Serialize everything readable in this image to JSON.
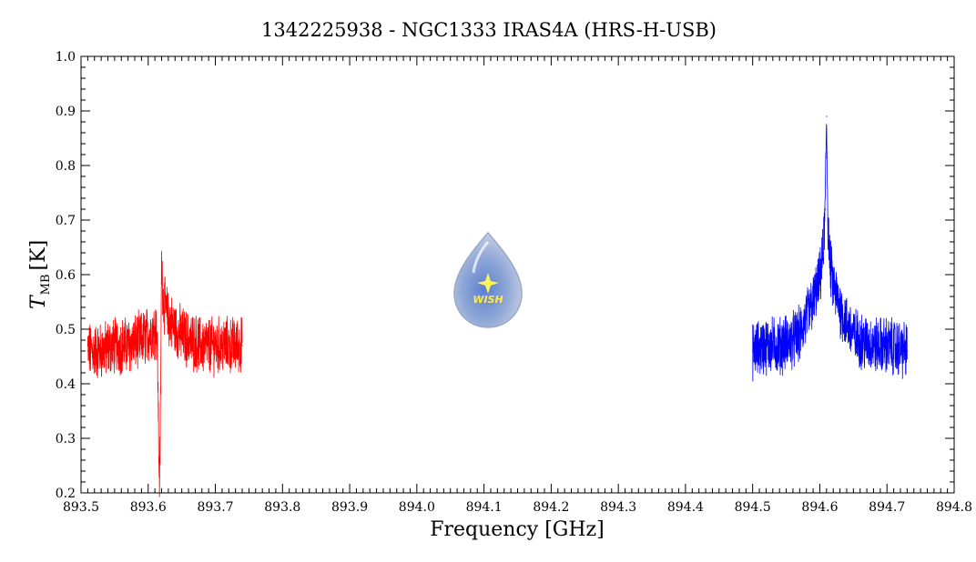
{
  "chart_data": {
    "type": "line",
    "title": "1342225938 - NGC1333 IRAS4A (HRS-H-USB)",
    "xlabel": "Frequency [GHz]",
    "ylabel_main": "T",
    "ylabel_sub": "MB",
    "ylabel_unit": "[K]",
    "xlim": [
      893.5,
      894.8
    ],
    "ylim": [
      0.2,
      1.0
    ],
    "xticks": [
      893.5,
      893.6,
      893.7,
      893.8,
      893.9,
      894.0,
      894.1,
      894.2,
      894.3,
      894.4,
      894.5,
      894.6,
      894.7,
      894.8
    ],
    "xtick_labels": [
      "893.5",
      "893.6",
      "893.7",
      "893.8",
      "893.9",
      "894.0",
      "894.1",
      "894.2",
      "894.3",
      "894.4",
      "894.5",
      "894.6",
      "894.7",
      "894.8"
    ],
    "yticks": [
      0.2,
      0.3,
      0.4,
      0.5,
      0.6,
      0.7,
      0.8,
      0.9,
      1.0
    ],
    "ytick_labels": [
      "0.2",
      "0.3",
      "0.4",
      "0.5",
      "0.6",
      "0.7",
      "0.8",
      "0.9",
      "1.0"
    ],
    "grid": false,
    "series": [
      {
        "color": "#ff0000",
        "x": [
          893.51,
          893.53,
          893.55,
          893.57,
          893.59,
          893.6,
          893.61,
          893.612,
          893.614,
          893.616,
          893.617,
          893.618,
          893.62,
          893.622,
          893.625,
          893.63,
          893.64,
          893.66,
          893.68,
          893.7,
          893.72,
          893.74
        ],
        "y": [
          0.46,
          0.46,
          0.47,
          0.47,
          0.48,
          0.49,
          0.5,
          0.51,
          0.45,
          0.26,
          0.23,
          0.3,
          0.63,
          0.56,
          0.54,
          0.52,
          0.5,
          0.48,
          0.47,
          0.47,
          0.47,
          0.47
        ]
      },
      {
        "color": "#0000ff",
        "x": [
          894.5,
          894.52,
          894.54,
          894.56,
          894.57,
          894.58,
          894.59,
          894.6,
          894.605,
          894.608,
          894.61,
          894.612,
          894.615,
          894.62,
          894.63,
          894.64,
          894.65,
          894.66,
          894.68,
          894.7,
          894.73
        ],
        "y": [
          0.46,
          0.47,
          0.47,
          0.48,
          0.49,
          0.52,
          0.55,
          0.59,
          0.64,
          0.72,
          0.89,
          0.7,
          0.62,
          0.58,
          0.54,
          0.51,
          0.49,
          0.48,
          0.47,
          0.47,
          0.46
        ]
      }
    ]
  },
  "logo": {
    "text": "WISH",
    "color_body": "#aabbdd",
    "color_star": "#fff25a"
  }
}
